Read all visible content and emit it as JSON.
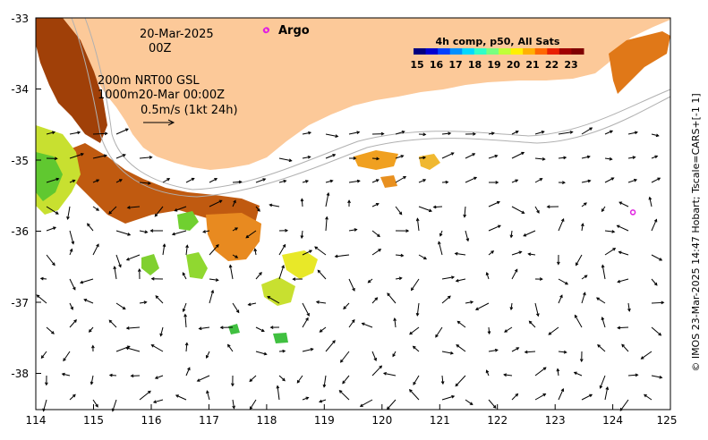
{
  "map": {
    "date_line1": "20-Mar-2025",
    "date_line2": "00Z",
    "legend_line1": "200m  NRT00 GSL",
    "legend_line2": "1000m20-Mar 00:00Z",
    "legend_line3": "0.5m/s (1kt 24h)",
    "argo_label": "Argo",
    "credit": "© IMOS 23-Mar-2025 14:47 Hobart; Tscale=CARS+[-1 1]"
  },
  "colorbar": {
    "title": "4h comp, p50, All Sats",
    "ticks": [
      "15",
      "16",
      "17",
      "18",
      "19",
      "20",
      "21",
      "22",
      "23"
    ],
    "colors": [
      "#00007f",
      "#0000d0",
      "#0040ff",
      "#0090ff",
      "#00d8ff",
      "#30ffc8",
      "#78ff80",
      "#c0ff38",
      "#fff000",
      "#ffb000",
      "#ff6800",
      "#e82000",
      "#a00000",
      "#7f0000"
    ]
  },
  "axes": {
    "x_ticks": [
      "114",
      "115",
      "116",
      "117",
      "118",
      "119",
      "120",
      "121",
      "122",
      "123",
      "124",
      "125"
    ],
    "y_ticks": [
      "-33",
      "-34",
      "-35",
      "-36",
      "-37",
      "-38"
    ]
  },
  "argo_floats": [
    {
      "lon": 118.0,
      "lat": -33.17
    },
    {
      "lon": 124.35,
      "lat": -35.73
    }
  ],
  "colors": {
    "land": "#fcc999",
    "argo_marker": "#e020e0",
    "sst_warm": "#a04008",
    "sst_mid": "#e88a20",
    "sst_yellow": "#f0e020",
    "sst_green": "#70d030"
  }
}
